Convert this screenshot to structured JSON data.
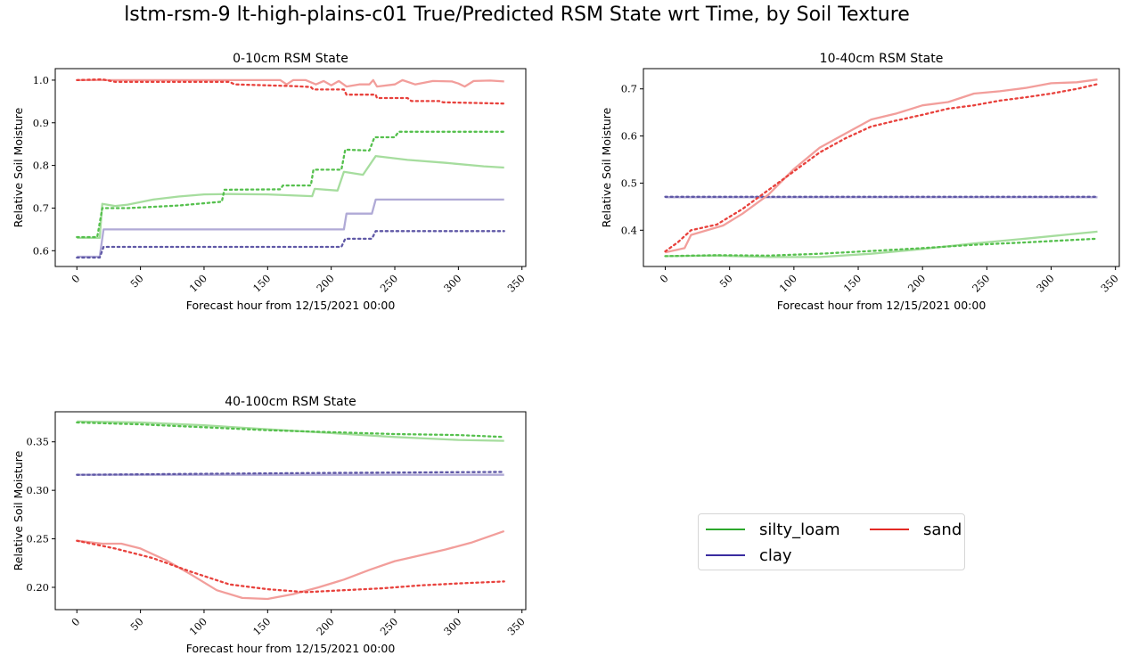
{
  "title": "lstm-rsm-9 lt-high-plains-c01 True/Predicted RSM State wrt Time, by Soil Texture",
  "colors": {
    "silty_loam": "#2ca82c",
    "clay": "#3a2ca0",
    "sand": "#e32a24",
    "silty_loam_true": "#a6dd9e",
    "clay_true": "#b0aad6",
    "sand_true": "#f29e9b",
    "silty_loam_pred": "#55c04d",
    "clay_pred": "#5f58a6",
    "sand_pred": "#e8413c"
  },
  "legend": {
    "items": [
      {
        "key": "silty_loam",
        "label": "silty_loam"
      },
      {
        "key": "clay",
        "label": "clay"
      },
      {
        "key": "sand",
        "label": "sand"
      }
    ]
  },
  "chart_data": [
    {
      "type": "line",
      "title": "0-10cm RSM State",
      "xlabel": "Forecast hour from 12/15/2021 00:00",
      "ylabel": "Relative Soil Moisture",
      "xlim": [
        -17,
        353
      ],
      "ylim": [
        0.563,
        1.027
      ],
      "xticks": [
        0,
        50,
        100,
        150,
        200,
        250,
        300,
        350
      ],
      "yticks": [
        0.6,
        0.7,
        0.8,
        0.9,
        1.0
      ],
      "ytick_labels": [
        "0.6",
        "0.7",
        "0.8",
        "0.9",
        "1.0"
      ],
      "series": [
        {
          "texture": "silty_loam",
          "kind": "true",
          "points": [
            [
              0,
              0.63
            ],
            [
              18,
              0.63
            ],
            [
              20,
              0.71
            ],
            [
              30,
              0.705
            ],
            [
              40,
              0.708
            ],
            [
              60,
              0.72
            ],
            [
              80,
              0.727
            ],
            [
              100,
              0.732
            ],
            [
              120,
              0.733
            ],
            [
              150,
              0.732
            ],
            [
              185,
              0.728
            ],
            [
              187,
              0.745
            ],
            [
              205,
              0.741
            ],
            [
              210,
              0.785
            ],
            [
              225,
              0.778
            ],
            [
              235,
              0.822
            ],
            [
              260,
              0.813
            ],
            [
              290,
              0.806
            ],
            [
              320,
              0.798
            ],
            [
              336,
              0.795
            ]
          ]
        },
        {
          "texture": "silty_loam",
          "kind": "pred",
          "points": [
            [
              0,
              0.632
            ],
            [
              16,
              0.632
            ],
            [
              20,
              0.7
            ],
            [
              40,
              0.7
            ],
            [
              80,
              0.706
            ],
            [
              114,
              0.715
            ],
            [
              116,
              0.743
            ],
            [
              160,
              0.744
            ],
            [
              162,
              0.753
            ],
            [
              184,
              0.753
            ],
            [
              186,
              0.79
            ],
            [
              208,
              0.79
            ],
            [
              211,
              0.837
            ],
            [
              230,
              0.835
            ],
            [
              234,
              0.866
            ],
            [
              250,
              0.866
            ],
            [
              253,
              0.879
            ],
            [
              336,
              0.879
            ]
          ]
        },
        {
          "texture": "clay",
          "kind": "true",
          "points": [
            [
              0,
              0.586
            ],
            [
              18,
              0.586
            ],
            [
              21,
              0.65
            ],
            [
              210,
              0.65
            ],
            [
              212,
              0.687
            ],
            [
              232,
              0.687
            ],
            [
              235,
              0.72
            ],
            [
              336,
              0.72
            ]
          ]
        },
        {
          "texture": "clay",
          "kind": "pred",
          "points": [
            [
              0,
              0.584
            ],
            [
              18,
              0.584
            ],
            [
              21,
              0.609
            ],
            [
              208,
              0.609
            ],
            [
              211,
              0.628
            ],
            [
              232,
              0.628
            ],
            [
              235,
              0.646
            ],
            [
              336,
              0.646
            ]
          ]
        },
        {
          "texture": "sand",
          "kind": "true",
          "points": [
            [
              0,
              1.0
            ],
            [
              160,
              1.0
            ],
            [
              165,
              0.99
            ],
            [
              170,
              1.0
            ],
            [
              180,
              1.0
            ],
            [
              188,
              0.99
            ],
            [
              194,
              0.998
            ],
            [
              200,
              0.988
            ],
            [
              206,
              0.998
            ],
            [
              212,
              0.985
            ],
            [
              222,
              0.99
            ],
            [
              230,
              0.99
            ],
            [
              233,
              1.0
            ],
            [
              236,
              0.985
            ],
            [
              250,
              0.99
            ],
            [
              256,
              1.0
            ],
            [
              266,
              0.99
            ],
            [
              280,
              0.998
            ],
            [
              295,
              0.997
            ],
            [
              300,
              0.992
            ],
            [
              305,
              0.985
            ],
            [
              312,
              0.998
            ],
            [
              325,
              0.999
            ],
            [
              336,
              0.997
            ]
          ]
        },
        {
          "texture": "sand",
          "kind": "pred",
          "points": [
            [
              0,
              1.0
            ],
            [
              20,
              1.002
            ],
            [
              30,
              0.996
            ],
            [
              120,
              0.996
            ],
            [
              124,
              0.99
            ],
            [
              170,
              0.986
            ],
            [
              184,
              0.984
            ],
            [
              186,
              0.978
            ],
            [
              210,
              0.978
            ],
            [
              212,
              0.966
            ],
            [
              235,
              0.966
            ],
            [
              236,
              0.958
            ],
            [
              260,
              0.958
            ],
            [
              263,
              0.951
            ],
            [
              285,
              0.951
            ],
            [
              288,
              0.948
            ],
            [
              336,
              0.945
            ]
          ]
        }
      ]
    },
    {
      "type": "line",
      "title": "10-40cm RSM State",
      "xlabel": "Forecast hour from 12/15/2021 00:00",
      "ylabel": "Relative Soil Moisture",
      "xlim": [
        -17,
        353
      ],
      "ylim": [
        0.323,
        0.743
      ],
      "xticks": [
        0,
        50,
        100,
        150,
        200,
        250,
        300,
        350
      ],
      "yticks": [
        0.4,
        0.5,
        0.6,
        0.7
      ],
      "ytick_labels": [
        "0.4",
        "0.5",
        "0.6",
        "0.7"
      ],
      "series": [
        {
          "texture": "silty_loam",
          "kind": "true",
          "points": [
            [
              0,
              0.345
            ],
            [
              40,
              0.346
            ],
            [
              80,
              0.343
            ],
            [
              120,
              0.343
            ],
            [
              160,
              0.35
            ],
            [
              200,
              0.36
            ],
            [
              240,
              0.372
            ],
            [
              280,
              0.382
            ],
            [
              336,
              0.397
            ]
          ]
        },
        {
          "texture": "silty_loam",
          "kind": "pred",
          "points": [
            [
              0,
              0.345
            ],
            [
              40,
              0.347
            ],
            [
              80,
              0.346
            ],
            [
              120,
              0.35
            ],
            [
              160,
              0.356
            ],
            [
              200,
              0.362
            ],
            [
              240,
              0.369
            ],
            [
              280,
              0.374
            ],
            [
              336,
              0.382
            ]
          ]
        },
        {
          "texture": "clay",
          "kind": "true",
          "points": [
            [
              0,
              0.47
            ],
            [
              336,
              0.47
            ]
          ]
        },
        {
          "texture": "clay",
          "kind": "pred",
          "points": [
            [
              0,
              0.471
            ],
            [
              336,
              0.471
            ]
          ]
        },
        {
          "texture": "sand",
          "kind": "true",
          "points": [
            [
              0,
              0.353
            ],
            [
              15,
              0.362
            ],
            [
              20,
              0.39
            ],
            [
              30,
              0.398
            ],
            [
              45,
              0.41
            ],
            [
              60,
              0.435
            ],
            [
              80,
              0.475
            ],
            [
              100,
              0.53
            ],
            [
              120,
              0.575
            ],
            [
              140,
              0.605
            ],
            [
              160,
              0.635
            ],
            [
              180,
              0.648
            ],
            [
              200,
              0.665
            ],
            [
              220,
              0.672
            ],
            [
              240,
              0.69
            ],
            [
              260,
              0.695
            ],
            [
              280,
              0.702
            ],
            [
              300,
              0.712
            ],
            [
              320,
              0.714
            ],
            [
              336,
              0.72
            ]
          ]
        },
        {
          "texture": "sand",
          "kind": "pred",
          "points": [
            [
              0,
              0.355
            ],
            [
              10,
              0.375
            ],
            [
              20,
              0.4
            ],
            [
              40,
              0.412
            ],
            [
              60,
              0.445
            ],
            [
              80,
              0.485
            ],
            [
              100,
              0.525
            ],
            [
              120,
              0.565
            ],
            [
              140,
              0.595
            ],
            [
              160,
              0.62
            ],
            [
              180,
              0.633
            ],
            [
              200,
              0.645
            ],
            [
              220,
              0.658
            ],
            [
              240,
              0.665
            ],
            [
              260,
              0.675
            ],
            [
              280,
              0.682
            ],
            [
              300,
              0.69
            ],
            [
              320,
              0.7
            ],
            [
              336,
              0.71
            ]
          ]
        }
      ]
    },
    {
      "type": "line",
      "title": "40-100cm RSM State",
      "xlabel": "Forecast hour from 12/15/2021 00:00",
      "ylabel": "Relative Soil Moisture",
      "xlim": [
        -17,
        353
      ],
      "ylim": [
        0.177,
        0.381
      ],
      "xticks": [
        0,
        50,
        100,
        150,
        200,
        250,
        300,
        350
      ],
      "yticks": [
        0.2,
        0.25,
        0.3,
        0.35
      ],
      "ytick_labels": [
        "0.20",
        "0.25",
        "0.30",
        "0.35"
      ],
      "series": [
        {
          "texture": "silty_loam",
          "kind": "true",
          "points": [
            [
              0,
              0.371
            ],
            [
              50,
              0.37
            ],
            [
              100,
              0.367
            ],
            [
              150,
              0.363
            ],
            [
              200,
              0.359
            ],
            [
              250,
              0.355
            ],
            [
              300,
              0.352
            ],
            [
              336,
              0.351
            ]
          ]
        },
        {
          "texture": "silty_loam",
          "kind": "pred",
          "points": [
            [
              0,
              0.37
            ],
            [
              50,
              0.368
            ],
            [
              100,
              0.365
            ],
            [
              150,
              0.362
            ],
            [
              200,
              0.36
            ],
            [
              250,
              0.358
            ],
            [
              300,
              0.357
            ],
            [
              336,
              0.355
            ]
          ]
        },
        {
          "texture": "clay",
          "kind": "true",
          "points": [
            [
              0,
              0.316
            ],
            [
              336,
              0.316
            ]
          ]
        },
        {
          "texture": "clay",
          "kind": "pred",
          "points": [
            [
              0,
              0.316
            ],
            [
              100,
              0.317
            ],
            [
              200,
              0.318
            ],
            [
              336,
              0.319
            ]
          ]
        },
        {
          "texture": "sand",
          "kind": "true",
          "points": [
            [
              0,
              0.248
            ],
            [
              20,
              0.245
            ],
            [
              35,
              0.245
            ],
            [
              50,
              0.24
            ],
            [
              70,
              0.228
            ],
            [
              90,
              0.213
            ],
            [
              110,
              0.197
            ],
            [
              130,
              0.189
            ],
            [
              150,
              0.188
            ],
            [
              170,
              0.193
            ],
            [
              190,
              0.2
            ],
            [
              210,
              0.208
            ],
            [
              230,
              0.218
            ],
            [
              250,
              0.227
            ],
            [
              270,
              0.233
            ],
            [
              290,
              0.239
            ],
            [
              310,
              0.246
            ],
            [
              336,
              0.258
            ]
          ]
        },
        {
          "texture": "sand",
          "kind": "pred",
          "points": [
            [
              0,
              0.248
            ],
            [
              30,
              0.24
            ],
            [
              60,
              0.23
            ],
            [
              90,
              0.216
            ],
            [
              120,
              0.203
            ],
            [
              150,
              0.198
            ],
            [
              180,
              0.195
            ],
            [
              210,
              0.197
            ],
            [
              240,
              0.199
            ],
            [
              270,
              0.202
            ],
            [
              300,
              0.204
            ],
            [
              336,
              0.206
            ]
          ]
        }
      ]
    }
  ]
}
